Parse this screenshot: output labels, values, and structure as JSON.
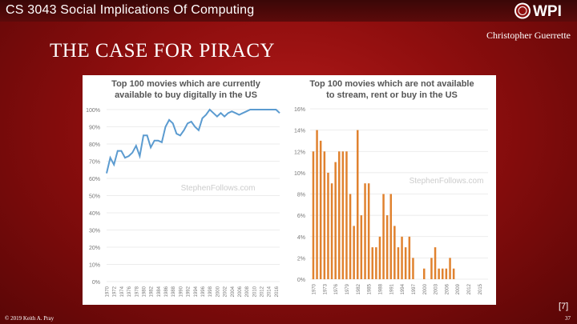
{
  "header": {
    "course_title": "CS 3043 Social Implications Of Computing",
    "logo_text": "WPI"
  },
  "slide": {
    "author": "Christopher Guerrette",
    "title": "THE CASE FOR PIRACY",
    "reference": "[7]",
    "copyright": "© 2019 Keith A. Pray",
    "page_number": "37"
  },
  "colors": {
    "background": "#8e0e0e",
    "line_color": "#5b9bd0",
    "bar_color": "#e0822f"
  },
  "chart_data": [
    {
      "type": "line",
      "title_line1": "Top 100 movies which are currently",
      "title_line2": "available to buy digitally in the US",
      "watermark": "StephenFollows.com",
      "ylim": [
        0,
        100
      ],
      "yticks": [
        0,
        10,
        20,
        30,
        40,
        50,
        60,
        70,
        80,
        90,
        100
      ],
      "xlim": [
        1970,
        2017
      ],
      "xticks": [
        1970,
        1972,
        1974,
        1976,
        1978,
        1980,
        1982,
        1984,
        1986,
        1988,
        1990,
        1992,
        1994,
        1996,
        1998,
        2000,
        2002,
        2004,
        2006,
        2008,
        2010,
        2012,
        2014,
        2016
      ],
      "x": [
        1970,
        1971,
        1972,
        1973,
        1974,
        1975,
        1976,
        1977,
        1978,
        1979,
        1980,
        1981,
        1982,
        1983,
        1984,
        1985,
        1986,
        1987,
        1988,
        1989,
        1990,
        1991,
        1992,
        1993,
        1994,
        1995,
        1996,
        1997,
        1998,
        1999,
        2000,
        2001,
        2002,
        2003,
        2004,
        2005,
        2006,
        2007,
        2008,
        2009,
        2010,
        2011,
        2012,
        2013,
        2014,
        2015,
        2016,
        2017
      ],
      "y": [
        63,
        72,
        68,
        76,
        76,
        72,
        73,
        75,
        79,
        73,
        85,
        85,
        78,
        82,
        82,
        81,
        90,
        94,
        92,
        86,
        85,
        88,
        92,
        93,
        90,
        88,
        95,
        97,
        100,
        98,
        96,
        98,
        96,
        98,
        99,
        98,
        97,
        98,
        99,
        100,
        100,
        100,
        100,
        100,
        100,
        100,
        100,
        98
      ]
    },
    {
      "type": "bar",
      "title_line1": "Top 100 movies which are not available",
      "title_line2": "to stream, rent or buy in the US",
      "watermark": "StephenFollows.com",
      "ylim": [
        0,
        16
      ],
      "yticks": [
        0,
        2,
        4,
        6,
        8,
        10,
        12,
        14,
        16
      ],
      "xlim": [
        1970,
        2016
      ],
      "xticks": [
        1970,
        1973,
        1976,
        1979,
        1982,
        1985,
        1988,
        1991,
        1994,
        1997,
        2000,
        2003,
        2006,
        2009,
        2012,
        2015
      ],
      "x": [
        1970,
        1971,
        1972,
        1973,
        1974,
        1975,
        1976,
        1977,
        1978,
        1979,
        1980,
        1981,
        1982,
        1983,
        1984,
        1985,
        1986,
        1987,
        1988,
        1989,
        1990,
        1991,
        1992,
        1993,
        1994,
        1995,
        1996,
        1997,
        1998,
        1999,
        2000,
        2001,
        2002,
        2003,
        2004,
        2005,
        2006,
        2007,
        2008,
        2009,
        2010,
        2011,
        2012,
        2013,
        2014,
        2015,
        2016
      ],
      "values": [
        12,
        14,
        13,
        12,
        10,
        9,
        11,
        12,
        12,
        12,
        8,
        5,
        14,
        6,
        9,
        9,
        3,
        3,
        4,
        8,
        6,
        8,
        5,
        3,
        4,
        3,
        4,
        2,
        0,
        0,
        1,
        0,
        2,
        3,
        1,
        1,
        1,
        2,
        1,
        0,
        0,
        0,
        0,
        0,
        0,
        0,
        0
      ]
    }
  ]
}
